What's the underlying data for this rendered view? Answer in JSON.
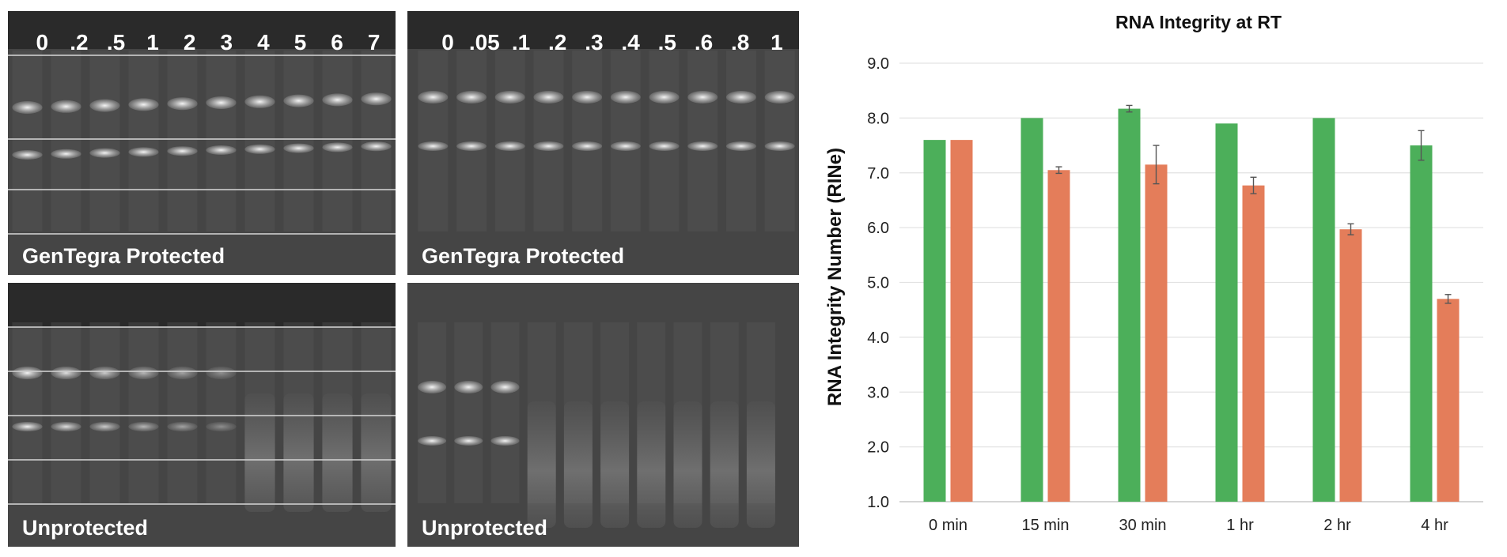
{
  "gels": [
    {
      "lanes": [
        "0",
        ".2",
        ".5",
        "1",
        "2",
        "3",
        "4",
        "5",
        "6",
        "7"
      ],
      "caption": "GenTegra Protected"
    },
    {
      "lanes": [
        "0",
        ".05",
        ".1",
        ".2",
        ".3",
        ".4",
        ".5",
        ".6",
        ".8",
        "1"
      ],
      "caption": "GenTegra Protected"
    },
    {
      "lanes": [],
      "caption": "Unprotected"
    },
    {
      "lanes": [],
      "caption": "Unprotected"
    }
  ],
  "chart_data": {
    "type": "bar",
    "title": "RNA Integrity at RT",
    "ylabel": "RNA Integrity Number (RINe)",
    "xlabel": "",
    "categories": [
      "0 min",
      "15 min",
      "30 min",
      "1 hr",
      "2 hr",
      "4 hr"
    ],
    "series": [
      {
        "values": [
          7.6,
          8.0,
          8.17,
          7.9,
          8.0,
          7.5
        ],
        "errors": [
          0.0,
          0.0,
          0.06,
          0.0,
          0.0,
          0.27
        ],
        "color": "#4caf5a"
      },
      {
        "values": [
          7.6,
          7.05,
          7.15,
          6.77,
          5.97,
          4.7
        ],
        "errors": [
          0.0,
          0.06,
          0.35,
          0.15,
          0.1,
          0.08
        ],
        "color": "#e47d5a"
      }
    ],
    "ylim": [
      1.0,
      9.0
    ],
    "yticks": [
      "1.0",
      "2.0",
      "3.0",
      "4.0",
      "5.0",
      "6.0",
      "7.0",
      "8.0",
      "9.0"
    ],
    "grid": true,
    "legend": "none"
  }
}
